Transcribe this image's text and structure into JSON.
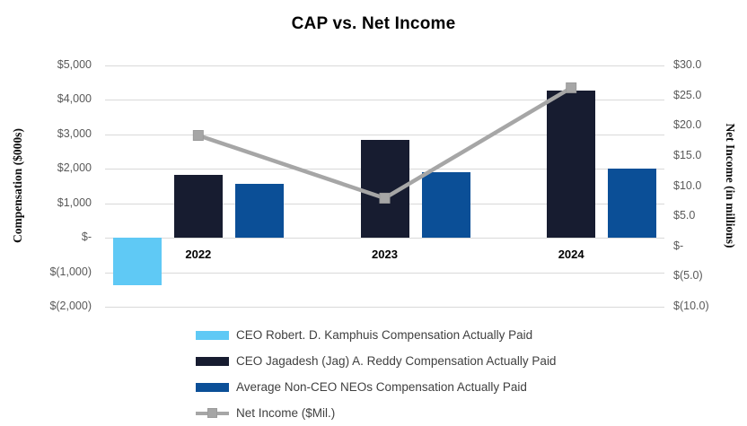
{
  "title": "CAP vs. Net Income",
  "left_axis": {
    "title": "Compensation ($000s)",
    "ticks": [
      "$5,000",
      "$4,000",
      "$3,000",
      "$2,000",
      "$1,000",
      "$-",
      "$(1,000)",
      "$(2,000)"
    ]
  },
  "right_axis": {
    "title": "Net Income (in millions)",
    "ticks": [
      "$30.0",
      "$25.0",
      "$20.0",
      "$15.0",
      "$10.0",
      "$5.0",
      "$-",
      "$(5.0)",
      "$(10.0)"
    ]
  },
  "chart_data": {
    "type": "bar",
    "subtype": "grouped bars with secondary-axis line",
    "title": "CAP vs. Net Income",
    "categories": [
      "2022",
      "2023",
      "2024"
    ],
    "left_ylabel": "Compensation ($000s)",
    "right_ylabel": "Net Income (in millions)",
    "left_ylim": [
      -2000,
      5000
    ],
    "left_step": 1000,
    "right_ylim": [
      -10,
      30
    ],
    "right_step": 5,
    "grid": true,
    "legend_position": "bottom",
    "series": [
      {
        "name": "CEO Robert. D. Kamphuis Compensation Actually Paid",
        "type": "bar",
        "axis": "left",
        "color": "#5fc9f5",
        "values": [
          -1380,
          null,
          null
        ]
      },
      {
        "name": "CEO Jagadesh (Jag) A. Reddy Compensation Actually Paid",
        "type": "bar",
        "axis": "left",
        "color": "#171c30",
        "values": [
          1820,
          2840,
          4280
        ]
      },
      {
        "name": "Average Non-CEO NEOs Compensation Actually Paid",
        "type": "bar",
        "axis": "left",
        "color": "#0b4f97",
        "values": [
          1560,
          1900,
          2000
        ]
      },
      {
        "name": "Net Income ($Mil.)",
        "type": "line",
        "axis": "right",
        "color": "#a6a6a6",
        "values": [
          18.4,
          8.0,
          26.3
        ]
      }
    ]
  },
  "colors": {
    "gridline": "#d9d9d9",
    "tick_text": "#595959",
    "legend_text": "#404040",
    "line_series": "#a6a6a6"
  }
}
